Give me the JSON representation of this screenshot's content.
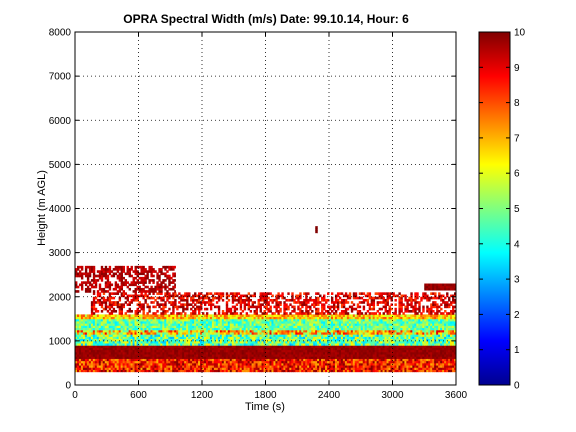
{
  "chart_data": {
    "type": "heatmap",
    "title": "OPRA Spectral Width (m/s)  Date: 99.10.14, Hour: 6",
    "xlabel": "Time (s)",
    "ylabel": "Height (m AGL)",
    "xlim": [
      0,
      3600
    ],
    "ylim": [
      0,
      8000
    ],
    "x_ticks": [
      0,
      600,
      1200,
      1800,
      2400,
      3000,
      3600
    ],
    "y_ticks": [
      0,
      1000,
      2000,
      3000,
      4000,
      5000,
      6000,
      7000,
      8000
    ],
    "grid": true,
    "colorbar": {
      "min": 0,
      "max": 10,
      "ticks": [
        0,
        1,
        2,
        3,
        4,
        5,
        6,
        7,
        8,
        9,
        10
      ],
      "colormap": "jet",
      "placement": "right"
    },
    "bands": [
      {
        "height_range": [
          300,
          600
        ],
        "time_range": [
          0,
          3600
        ],
        "value_range": [
          7,
          10
        ],
        "pattern": "mostly dark red with orange and yellow patches"
      },
      {
        "height_range": [
          600,
          900
        ],
        "time_range": [
          0,
          3600
        ],
        "value_range": [
          9.5,
          10
        ],
        "pattern": "solid dark red"
      },
      {
        "height_range": [
          900,
          1150
        ],
        "time_range": [
          0,
          3600
        ],
        "value_range": [
          3,
          6.5
        ],
        "pattern": "mixed cyan, green and yellow"
      },
      {
        "height_range": [
          1150,
          1250
        ],
        "time_range": [
          0,
          3600
        ],
        "value_range": [
          4.5,
          9
        ],
        "pattern": "yellow and orange stripe"
      },
      {
        "height_range": [
          1250,
          1500
        ],
        "time_range": [
          0,
          3600
        ],
        "value_range": [
          3.5,
          6
        ],
        "pattern": "cyan and green"
      },
      {
        "height_range": [
          1500,
          1600
        ],
        "time_range": [
          0,
          3600
        ],
        "value_range": [
          5.5,
          8
        ],
        "pattern": "yellow-green to orange"
      },
      {
        "height_range": [
          1600,
          2100
        ],
        "time_range": [
          150,
          3600
        ],
        "value_range": [
          8,
          10
        ],
        "pattern": "scattered dark red and red"
      },
      {
        "height_range": [
          2100,
          2700
        ],
        "time_range": [
          0,
          950
        ],
        "value_range": [
          9,
          10
        ],
        "pattern": "scattered dark red"
      },
      {
        "height_range": [
          2150,
          2300
        ],
        "time_range": [
          3300,
          3600
        ],
        "value_range": [
          9.5,
          10
        ],
        "pattern": "dark red"
      },
      {
        "height_range": [
          3450,
          3600
        ],
        "time_range": [
          2270,
          2290
        ],
        "value_range": [
          9.5,
          10
        ],
        "pattern": "isolated dark red cell"
      }
    ]
  }
}
